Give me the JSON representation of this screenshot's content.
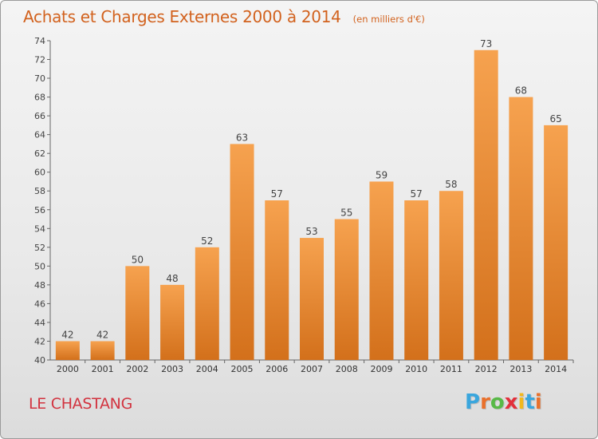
{
  "header": {
    "title": "Achats et Charges Externes 2000 à 2014",
    "subtitle": "(en milliers d'€)"
  },
  "footer": {
    "commune": "LE CHASTANG",
    "logo_letters": [
      "P",
      "r",
      "o",
      "x",
      "i",
      "t",
      "i"
    ],
    "logo_colors": [
      "#3aa6dd",
      "#e9702b",
      "#58b947",
      "#e2303b",
      "#f2b81d",
      "#3aa6dd",
      "#e9702b"
    ]
  },
  "colors": {
    "bar_top": "#f6a24f",
    "bar_bottom": "#d3701b",
    "title": "#d2621e",
    "commune": "#d2333f"
  },
  "chart_data": {
    "type": "bar",
    "title": "Achats et Charges Externes 2000 à 2014",
    "subtitle": "(en milliers d'€)",
    "categories": [
      "2000",
      "2001",
      "2002",
      "2003",
      "2004",
      "2005",
      "2006",
      "2007",
      "2008",
      "2009",
      "2010",
      "2011",
      "2012",
      "2013",
      "2014"
    ],
    "values": [
      42,
      42,
      50,
      48,
      52,
      63,
      57,
      53,
      55,
      59,
      57,
      58,
      73,
      68,
      65
    ],
    "ylim": [
      40,
      74
    ],
    "yticks": [
      40,
      42,
      44,
      46,
      48,
      50,
      52,
      54,
      56,
      58,
      60,
      62,
      64,
      66,
      68,
      70,
      72,
      74
    ],
    "grid": false,
    "data_labels": true
  }
}
